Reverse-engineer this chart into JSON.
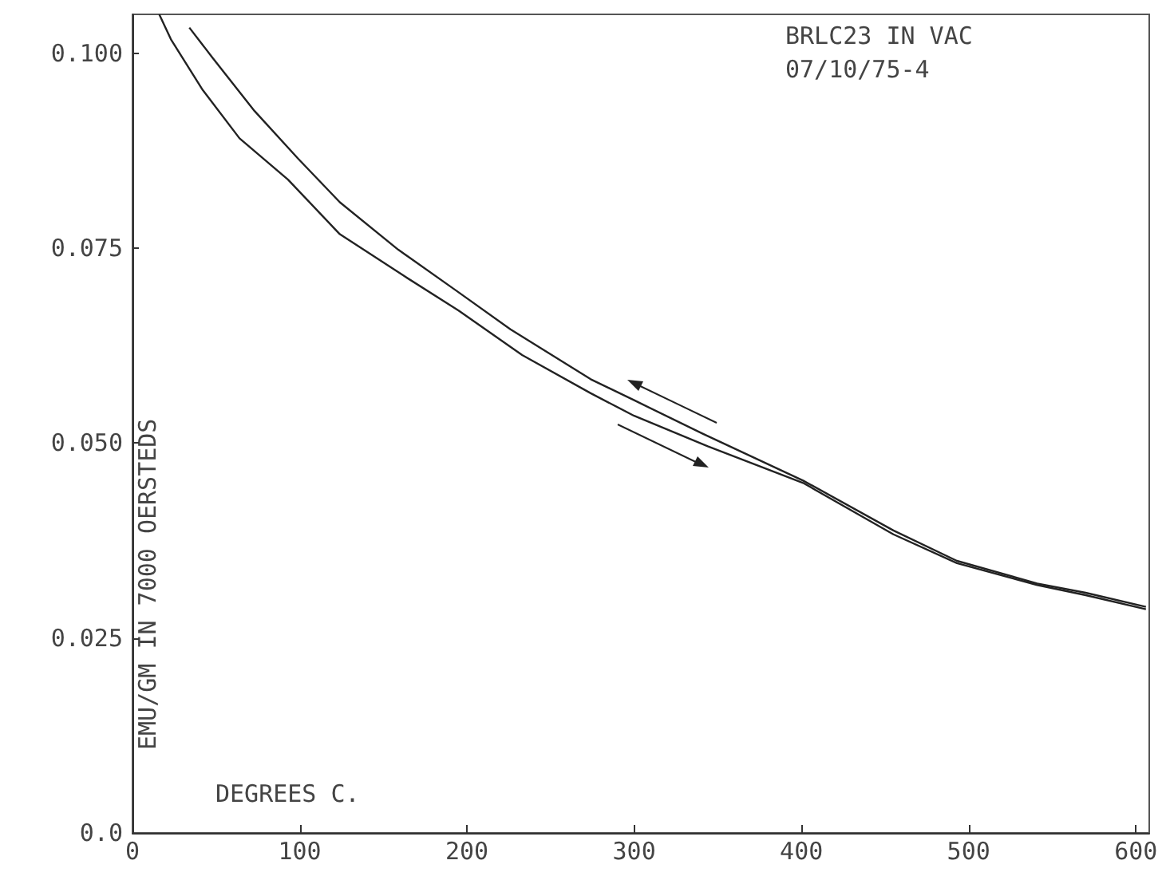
{
  "chart_data": {
    "type": "line",
    "title": "BRLC23 IN VAC",
    "subtitle": "07/10/75-4",
    "xlabel": "DEGREES C.",
    "ylabel": "EMU/GM IN 7000 OERSTEDS",
    "marker": "none",
    "line_style": "solid",
    "grid": false,
    "xlim": [
      0,
      608
    ],
    "xticks": [
      0,
      100,
      200,
      300,
      400,
      500,
      600
    ],
    "ylim": [
      0,
      0.105
    ],
    "yticks": [
      {
        "value": 0,
        "label": "0.0"
      },
      0.025,
      {
        "value": 0.05,
        "label": "0.050"
      },
      0.075,
      {
        "value": 0.1,
        "label": "0.100"
      }
    ],
    "series": [
      {
        "color": "#222222",
        "x": [
          16,
          23,
          42,
          64,
          93,
          124,
          162,
          195,
          233,
          274,
          300,
          344,
          401,
          455,
          493,
          541,
          570,
          606
        ],
        "values": [
          0.105,
          0.1018,
          0.0953,
          0.0891,
          0.0838,
          0.0768,
          0.0715,
          0.067,
          0.0613,
          0.0564,
          0.0535,
          0.0496,
          0.0449,
          0.0383,
          0.0346,
          0.0318,
          0.0305,
          0.0287
        ]
      },
      {
        "color": "#222222",
        "x": [
          34,
          48,
          73,
          99,
          124,
          159,
          194,
          226,
          274,
          300,
          341,
          401,
          455,
          493,
          541,
          570,
          606
        ],
        "values": [
          0.1033,
          0.0994,
          0.0926,
          0.0865,
          0.0809,
          0.0748,
          0.0695,
          0.0646,
          0.0582,
          0.0555,
          0.0512,
          0.0452,
          0.0388,
          0.0349,
          0.032,
          0.0308,
          0.029
        ]
      }
    ]
  }
}
